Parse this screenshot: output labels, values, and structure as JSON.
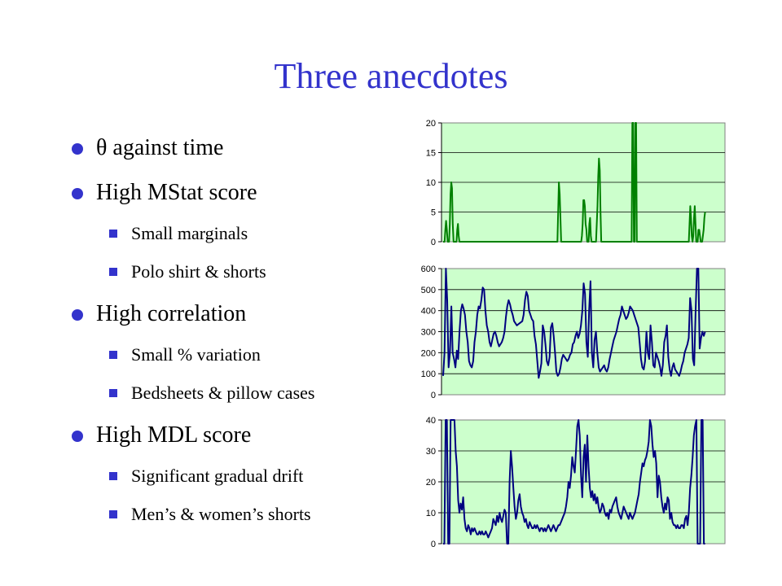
{
  "title": "Three anecdotes",
  "bullets": [
    {
      "text": "θ against time",
      "sub": []
    },
    {
      "text": "High MStat score",
      "sub": [
        "Small marginals",
        "Polo shirt & shorts"
      ]
    },
    {
      "text": "High correlation",
      "sub": [
        "Small % variation",
        "Bedsheets & pillow cases"
      ]
    },
    {
      "text": "High MDL score",
      "sub": [
        "Significant gradual drift",
        "Men’s & women’s shorts"
      ]
    }
  ],
  "colors": {
    "title": "#3333cc",
    "bullet": "#3333cc",
    "plot_bg": "#ccffcc"
  },
  "chart_data": [
    {
      "type": "line",
      "ylim": [
        0,
        20
      ],
      "yticks": [
        0,
        5,
        10,
        15,
        20
      ],
      "grid": true,
      "series": [
        {
          "color": "#008000",
          "values": [
            0,
            0,
            0,
            2,
            3.5,
            2,
            0,
            0,
            0,
            3,
            8,
            10,
            9,
            3,
            0,
            0,
            0,
            0,
            0,
            2,
            3,
            1,
            0,
            0,
            0,
            0,
            0,
            0,
            0,
            0,
            0,
            0,
            0,
            0,
            0,
            0,
            0,
            0,
            0,
            0,
            0,
            0,
            0,
            0,
            0,
            0,
            0,
            0,
            0,
            0,
            0,
            0,
            0,
            0,
            0,
            0,
            0,
            0,
            0,
            0,
            0,
            0,
            0,
            0,
            0,
            0,
            0,
            0,
            0,
            0,
            0,
            0,
            0,
            0,
            0,
            0,
            0,
            0,
            0,
            0,
            0,
            0,
            0,
            0,
            0,
            0,
            0,
            0,
            0,
            0,
            0,
            0,
            0,
            0,
            0,
            0,
            0,
            0,
            0,
            0,
            0,
            0,
            0,
            0,
            0,
            0,
            0,
            0,
            0,
            0,
            0,
            0,
            0,
            0,
            0,
            0,
            0,
            0,
            0,
            0,
            0,
            0,
            0,
            0,
            0,
            0,
            0,
            0,
            0,
            0,
            0,
            0,
            0,
            0,
            0,
            0,
            0,
            0,
            0,
            0,
            0,
            0,
            0,
            0,
            0,
            0,
            0,
            0,
            0,
            0,
            0,
            0,
            0,
            0,
            0,
            5,
            10,
            8,
            4,
            0,
            0,
            0,
            0,
            0,
            0,
            0,
            0,
            0,
            0,
            0,
            0,
            0,
            0,
            0,
            0,
            0,
            0,
            0,
            0,
            0,
            0,
            0,
            0,
            0,
            0,
            0,
            0,
            1,
            3,
            7,
            7,
            6,
            3,
            2,
            0,
            0,
            0,
            3,
            4,
            1,
            0,
            0,
            0,
            0,
            0,
            0,
            0,
            3,
            6,
            11,
            14,
            12,
            5,
            0,
            0,
            0,
            0,
            0,
            0,
            0,
            0,
            0,
            0,
            0,
            0,
            0,
            0,
            0,
            0,
            0,
            0,
            0,
            0,
            0,
            0,
            0,
            0,
            0,
            0,
            0,
            0,
            0,
            0,
            0,
            0,
            0,
            0,
            0,
            0,
            0,
            0,
            0,
            0,
            0,
            0,
            20,
            20,
            0,
            0,
            20,
            20,
            0,
            0,
            0,
            0,
            0,
            0,
            0,
            0,
            0,
            0,
            0,
            0,
            0,
            0,
            0,
            0,
            0,
            0,
            0,
            0,
            0,
            0,
            0,
            0,
            0,
            0,
            0,
            0,
            0,
            0,
            0,
            0,
            0,
            0,
            0,
            0,
            0,
            0,
            0,
            0,
            0,
            0,
            0,
            0,
            0,
            0,
            0,
            0,
            0,
            0,
            0,
            0,
            0,
            0,
            0,
            0,
            0,
            0,
            0,
            0,
            0,
            0,
            0,
            0,
            0,
            0,
            0,
            0,
            0,
            0,
            0,
            3,
            6,
            4,
            1,
            0,
            1,
            4,
            6,
            3,
            0,
            0,
            0,
            2,
            2,
            1,
            0,
            0,
            0,
            1,
            2,
            4,
            5
          ]
        }
      ]
    },
    {
      "type": "line",
      "ylim": [
        0,
        600
      ],
      "yticks": [
        0,
        100,
        200,
        300,
        400,
        500,
        600
      ],
      "grid": true,
      "series": [
        {
          "color": "#000080",
          "values": [
            90,
            200,
            600,
            450,
            130,
            200,
            420,
            200,
            170,
            130,
            210,
            170,
            300,
            400,
            430,
            410,
            380,
            300,
            250,
            160,
            140,
            130,
            160,
            250,
            300,
            380,
            420,
            410,
            450,
            510,
            500,
            400,
            330,
            300,
            250,
            230,
            260,
            290,
            300,
            280,
            250,
            230,
            240,
            250,
            270,
            300,
            370,
            420,
            450,
            430,
            400,
            380,
            350,
            340,
            330,
            335,
            340,
            345,
            350,
            380,
            450,
            490,
            470,
            400,
            380,
            360,
            350,
            280,
            240,
            160,
            80,
            110,
            150,
            330,
            300,
            240,
            160,
            140,
            180,
            320,
            340,
            280,
            200,
            110,
            90,
            100,
            130,
            170,
            190,
            180,
            170,
            160,
            170,
            190,
            200,
            240,
            250,
            280,
            300,
            270,
            290,
            330,
            400,
            530,
            480,
            250,
            180,
            400,
            540,
            200,
            130,
            260,
            300,
            200,
            130,
            110,
            120,
            130,
            140,
            120,
            110,
            130,
            170,
            200,
            230,
            260,
            280,
            300,
            330,
            360,
            380,
            420,
            400,
            380,
            360,
            370,
            390,
            420,
            410,
            400,
            380,
            360,
            340,
            320,
            250,
            170,
            130,
            120,
            160,
            300,
            200,
            170,
            330,
            250,
            140,
            130,
            200,
            180,
            160,
            130,
            90,
            140,
            250,
            280,
            330,
            180,
            120,
            90,
            130,
            150,
            120,
            110,
            100,
            90,
            110,
            140,
            160,
            200,
            220,
            240,
            270,
            460,
            400,
            170,
            140,
            390,
            600,
            600,
            220,
            270,
            300,
            280,
            300
          ]
        }
      ]
    },
    {
      "type": "line",
      "ylim": [
        0,
        40
      ],
      "yticks": [
        0,
        10,
        20,
        30,
        40
      ],
      "grid": true,
      "series": [
        {
          "color": "#000080",
          "values": [
            0,
            0,
            40,
            40,
            0,
            0,
            40,
            40,
            40,
            40,
            30,
            25,
            14,
            10,
            13,
            11,
            15,
            8,
            5,
            4,
            6,
            5,
            3,
            5,
            4,
            5,
            4,
            3,
            3,
            4,
            3,
            4,
            3,
            3,
            4,
            3,
            2,
            3,
            4,
            5,
            8,
            7,
            6,
            9,
            7,
            10,
            8,
            7,
            9,
            11,
            10,
            0,
            0,
            20,
            30,
            25,
            18,
            12,
            8,
            10,
            14,
            16,
            12,
            10,
            9,
            7,
            8,
            6,
            5,
            7,
            6,
            5,
            5,
            6,
            5,
            6,
            5,
            4,
            5,
            5,
            4,
            5,
            4,
            5,
            6,
            5,
            4,
            5,
            6,
            5,
            4,
            5,
            6,
            6,
            7,
            8,
            9,
            10,
            12,
            15,
            20,
            18,
            22,
            28,
            25,
            23,
            30,
            38,
            40,
            35,
            22,
            15,
            28,
            32,
            20,
            35,
            25,
            18,
            15,
            17,
            14,
            16,
            13,
            15,
            12,
            10,
            11,
            13,
            12,
            10,
            9,
            10,
            8,
            11,
            10,
            12,
            13,
            14,
            15,
            12,
            10,
            9,
            8,
            10,
            12,
            11,
            10,
            9,
            8,
            10,
            9,
            8,
            9,
            10,
            12,
            14,
            16,
            20,
            23,
            26,
            25,
            27,
            28,
            30,
            33,
            40,
            38,
            32,
            28,
            30,
            26,
            15,
            22,
            20,
            15,
            12,
            10,
            13,
            11,
            15,
            14,
            8,
            10,
            7,
            6,
            6,
            5,
            6,
            5,
            5,
            6,
            6,
            5,
            8,
            9,
            6,
            10,
            18,
            22,
            28,
            35,
            38,
            40,
            0,
            0,
            0,
            40,
            40,
            0,
            0
          ]
        }
      ]
    }
  ]
}
